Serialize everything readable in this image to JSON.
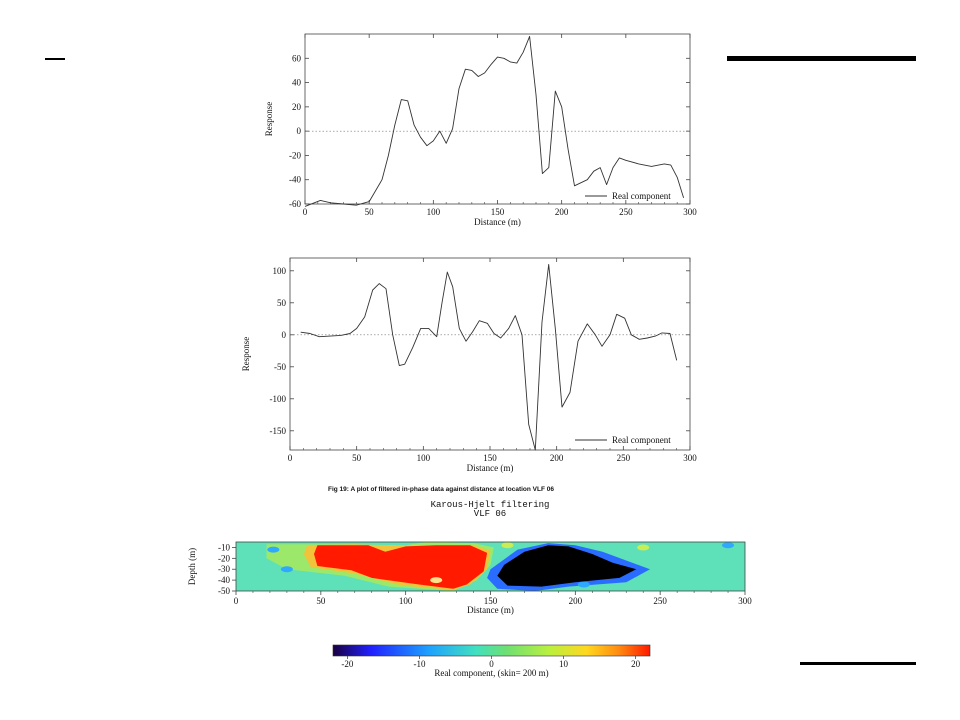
{
  "decor": {
    "accent_color": "#000000"
  },
  "caption": "Fig 19: A plot of filtered in-phase data against distance at location VLF 06",
  "heatmap_title": {
    "line1": "Karous-Hjelt filtering",
    "line2": "VLF 06"
  },
  "chart_data": [
    {
      "type": "line",
      "xlabel": "Distance (m)",
      "ylabel": "Response",
      "xlim": [
        0,
        300
      ],
      "ylim": [
        -60,
        80
      ],
      "xticks": [
        0,
        50,
        100,
        150,
        200,
        250,
        300
      ],
      "yticks": [
        -60,
        -40,
        -20,
        0,
        20,
        40,
        60
      ],
      "zero_line": "dotted",
      "legend_position": "bottom-right",
      "series": [
        {
          "name": "Real component",
          "color": "#333333",
          "x": [
            0,
            12,
            20,
            30,
            40,
            50,
            60,
            65,
            70,
            75,
            80,
            85,
            90,
            95,
            100,
            105,
            110,
            115,
            120,
            125,
            130,
            135,
            140,
            145,
            150,
            155,
            160,
            165,
            170,
            175,
            180,
            185,
            190,
            195,
            200,
            205,
            210,
            220,
            225,
            230,
            235,
            240,
            245,
            250,
            260,
            270,
            280,
            285,
            290,
            295
          ],
          "y": [
            -62,
            -57,
            -59,
            -60,
            -61,
            -58,
            -40,
            -20,
            5,
            26,
            25,
            5,
            -5,
            -12,
            -8,
            0,
            -10,
            2,
            35,
            51,
            50,
            45,
            48,
            55,
            61,
            60,
            57,
            56,
            65,
            78,
            30,
            -35,
            -30,
            33,
            20,
            -15,
            -45,
            -40,
            -33,
            -30,
            -44,
            -30,
            -22,
            -24,
            -27,
            -29,
            -27,
            -28,
            -38,
            -55
          ]
        }
      ]
    },
    {
      "type": "line",
      "xlabel": "Distance (m)",
      "ylabel": "Response",
      "xlim": [
        0,
        300
      ],
      "ylim": [
        -180,
        120
      ],
      "xticks": [
        0,
        50,
        100,
        150,
        200,
        250,
        300
      ],
      "yticks": [
        -150,
        -100,
        -50,
        0,
        50,
        100
      ],
      "zero_line": "dotted",
      "legend_position": "bottom-right",
      "series": [
        {
          "name": "Real component",
          "color": "#333333",
          "x": [
            8,
            15,
            22,
            30,
            38,
            45,
            50,
            56,
            62,
            67,
            72,
            77,
            82,
            86,
            92,
            98,
            104,
            110,
            114,
            118,
            122,
            127,
            132,
            137,
            142,
            148,
            153,
            158,
            164,
            169,
            174,
            179,
            184,
            189,
            194,
            199,
            204,
            210,
            216,
            223,
            229,
            234,
            240,
            245,
            251,
            256,
            262,
            268,
            274,
            279,
            285,
            290
          ],
          "y": [
            4,
            2,
            -3,
            -2,
            -1,
            2,
            10,
            28,
            70,
            80,
            72,
            0,
            -48,
            -46,
            -20,
            10,
            10,
            -3,
            50,
            98,
            75,
            10,
            -10,
            5,
            22,
            18,
            2,
            -5,
            10,
            30,
            0,
            -140,
            -180,
            20,
            110,
            10,
            -113,
            -90,
            -10,
            17,
            0,
            -18,
            0,
            32,
            26,
            0,
            -7,
            -5,
            -2,
            3,
            2,
            -40
          ]
        }
      ]
    },
    {
      "type": "heatmap",
      "xlabel": "Distance (m)",
      "ylabel": "Depth (m)",
      "xlim": [
        0,
        300
      ],
      "ylim": [
        -50,
        -5
      ],
      "xticks": [
        0,
        50,
        100,
        150,
        200,
        250,
        300
      ],
      "yticks": [
        -10,
        -20,
        -30,
        -40,
        -50
      ],
      "colorbar": {
        "label": "Real component,  (skin= 200 m)",
        "ticks": [
          -20,
          -10,
          0,
          10,
          20
        ],
        "range": [
          -22,
          22
        ]
      },
      "anomalies": [
        {
          "value": 20,
          "x": [
            50,
            150
          ],
          "depth": [
            -10,
            -45
          ],
          "color": "#ff1a00"
        },
        {
          "value": -22,
          "x": [
            155,
            235
          ],
          "depth": [
            -10,
            -42
          ],
          "color": "#000000"
        }
      ]
    }
  ]
}
